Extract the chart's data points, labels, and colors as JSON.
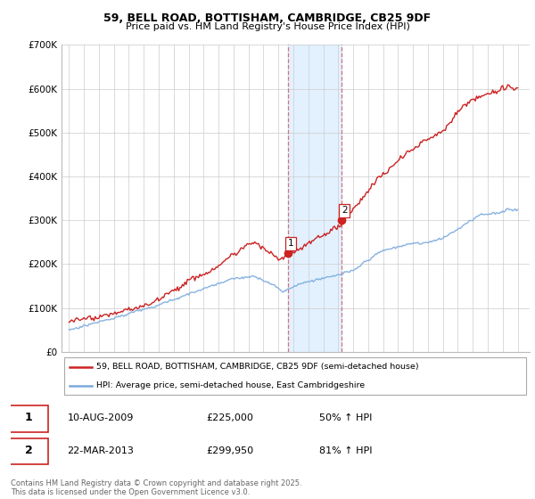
{
  "title_line1": "59, BELL ROAD, BOTTISHAM, CAMBRIDGE, CB25 9DF",
  "title_line2": "Price paid vs. HM Land Registry's House Price Index (HPI)",
  "legend_line1": "59, BELL ROAD, BOTTISHAM, CAMBRIDGE, CB25 9DF (semi-detached house)",
  "legend_line2": "HPI: Average price, semi-detached house, East Cambridgeshire",
  "footnote": "Contains HM Land Registry data © Crown copyright and database right 2025.\nThis data is licensed under the Open Government Licence v3.0.",
  "transactions": [
    {
      "label": "1",
      "date": "10-AUG-2009",
      "price": 225000,
      "hpi_change": "50% ↑ HPI",
      "year": 2009.62
    },
    {
      "label": "2",
      "date": "22-MAR-2013",
      "price": 299950,
      "hpi_change": "81% ↑ HPI",
      "year": 2013.22
    }
  ],
  "hpi_color": "#7aaadd",
  "price_color": "#cc2222",
  "shading_color": "#ddeeff",
  "background_color": "#ffffff",
  "ylim": [
    0,
    700000
  ],
  "yticks": [
    0,
    100000,
    200000,
    300000,
    400000,
    500000,
    600000,
    700000
  ],
  "ytick_labels": [
    "£0",
    "£100K",
    "£200K",
    "£300K",
    "£400K",
    "£500K",
    "£600K",
    "£700K"
  ],
  "xmin": 1994.5,
  "xmax": 2025.8,
  "xtick_start": 1995,
  "xtick_end": 2025,
  "grid_color": "#cccccc",
  "transaction_dot_size": 6,
  "line_width": 1.0
}
